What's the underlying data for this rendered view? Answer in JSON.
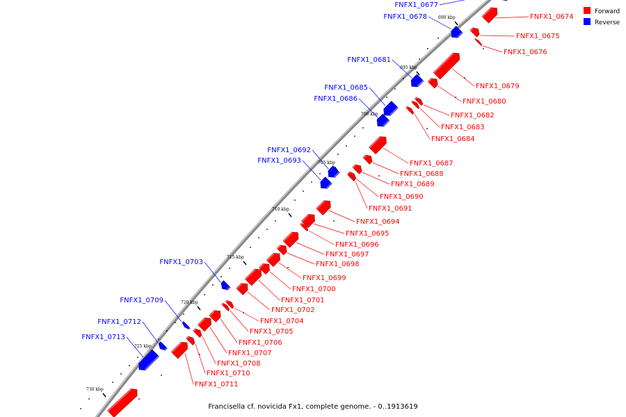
{
  "caption": "Francisella cf. novicida Fx1, complete genome. - 0..1913619",
  "colors": {
    "forward": "#ff0000",
    "reverse": "#0000ff",
    "backbone": "#8a8a8a",
    "leader_fwd": "#ff0000",
    "leader_rev": "#0000ff"
  },
  "legend": [
    {
      "label": "Forward",
      "color": "#ff0000"
    },
    {
      "label": "Reverse",
      "color": "#0000ff"
    }
  ],
  "ticks": [
    "690 kbp",
    "695 kbp",
    "700 kbp",
    "705 kbp",
    "710 kbp",
    "715 kbp",
    "720 kbp",
    "725 kbp",
    "730 kbp"
  ],
  "genes_forward": [
    "FNFX1_0674",
    "FNFX1_0675",
    "FNFX1_0676",
    "FNFX1_0679",
    "FNFX1_0680",
    "FNFX1_0682",
    "FNFX1_0683",
    "FNFX1_0684",
    "FNFX1_0687",
    "FNFX1_0688",
    "FNFX1_0689",
    "FNFX1_0690",
    "FNFX1_0691",
    "FNFX1_0694",
    "FNFX1_0695",
    "FNFX1_0696",
    "FNFX1_0697",
    "FNFX1_0698",
    "FNFX1_0699",
    "FNFX1_0700",
    "FNFX1_0701",
    "FNFX1_0702",
    "FNFX1_0704",
    "FNFX1_0705",
    "FNFX1_0706",
    "FNFX1_0707",
    "FNFX1_0708",
    "FNFX1_0710",
    "FNFX1_0711"
  ],
  "genes_reverse": [
    "FNFX1_0677",
    "FNFX1_0678",
    "FNFX1_0681",
    "FNFX1_0685",
    "FNFX1_0686",
    "FNFX1_0692",
    "FNFX1_0693",
    "FNFX1_0703",
    "FNFX1_0709",
    "FNFX1_0712",
    "FNFX1_0713"
  ]
}
